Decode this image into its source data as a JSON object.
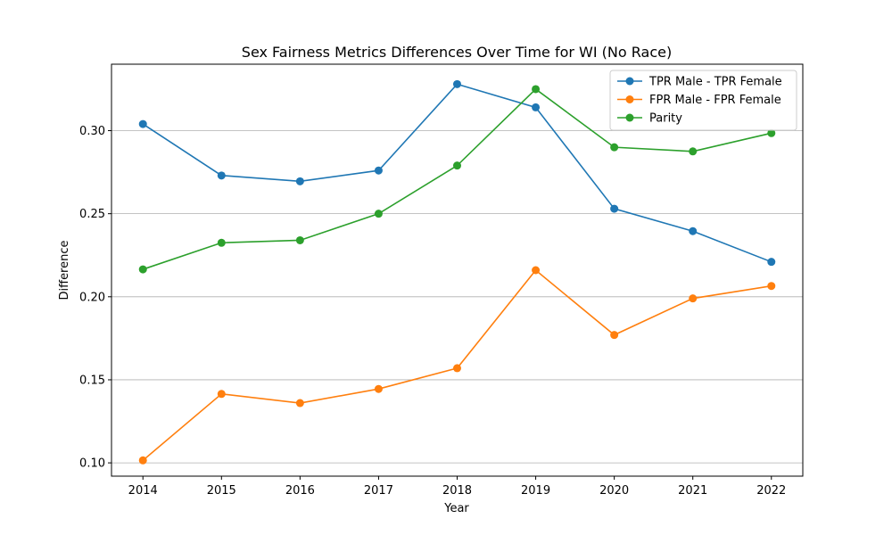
{
  "chart_data": {
    "type": "line",
    "title": "Sex Fairness Metrics Differences Over Time for WI (No Race)",
    "xlabel": "Year",
    "ylabel": "Difference",
    "x": [
      "2014",
      "2015",
      "2016",
      "2017",
      "2018",
      "2019",
      "2020",
      "2021",
      "2022"
    ],
    "xlim": [
      2013.6,
      2022.4
    ],
    "ylim": [
      0.092,
      0.34
    ],
    "yticks": [
      "0.10",
      "0.15",
      "0.20",
      "0.25",
      "0.30"
    ],
    "ytick_values": [
      0.1,
      0.15,
      0.2,
      0.25,
      0.3
    ],
    "grid": "horizontal",
    "legend_position": "top-right",
    "series": [
      {
        "name": "TPR Male - TPR Female",
        "color": "#1f77b4",
        "values": [
          0.304,
          0.273,
          0.2695,
          0.276,
          0.328,
          0.314,
          0.253,
          0.2395,
          0.221
        ]
      },
      {
        "name": "FPR Male - FPR Female",
        "color": "#ff7f0e",
        "values": [
          0.1015,
          0.1415,
          0.136,
          0.1445,
          0.157,
          0.216,
          0.177,
          0.199,
          0.2065
        ]
      },
      {
        "name": "Parity",
        "color": "#2ca02c",
        "values": [
          0.2165,
          0.2325,
          0.234,
          0.25,
          0.279,
          0.325,
          0.29,
          0.2875,
          0.2985
        ]
      }
    ]
  }
}
